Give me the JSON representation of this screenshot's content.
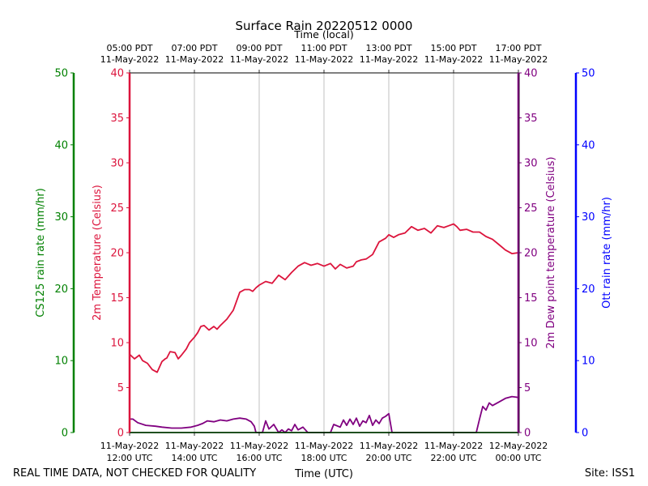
{
  "chart_data": {
    "type": "line",
    "title": "Surface Rain 20220512 0000",
    "top_axis_label": "Time (local)",
    "xlabel": "Time (UTC)",
    "footer_left": "REAL TIME DATA, NOT CHECKED FOR QUALITY",
    "footer_right": "Site: ISS1",
    "x_range_hours_utc": [
      12,
      24
    ],
    "x_ticks_utc": [
      {
        "hour": 12,
        "line1": "11-May-2022",
        "line2": "12:00 UTC"
      },
      {
        "hour": 14,
        "line1": "11-May-2022",
        "line2": "14:00 UTC"
      },
      {
        "hour": 16,
        "line1": "11-May-2022",
        "line2": "16:00 UTC"
      },
      {
        "hour": 18,
        "line1": "11-May-2022",
        "line2": "18:00 UTC"
      },
      {
        "hour": 20,
        "line1": "11-May-2022",
        "line2": "20:00 UTC"
      },
      {
        "hour": 22,
        "line1": "11-May-2022",
        "line2": "22:00 UTC"
      },
      {
        "hour": 24,
        "line1": "12-May-2022",
        "line2": "00:00 UTC"
      }
    ],
    "x_ticks_local": [
      {
        "hour": 12,
        "line1": "05:00 PDT",
        "line2": "11-May-2022"
      },
      {
        "hour": 14,
        "line1": "07:00 PDT",
        "line2": "11-May-2022"
      },
      {
        "hour": 16,
        "line1": "09:00 PDT",
        "line2": "11-May-2022"
      },
      {
        "hour": 18,
        "line1": "11:00 PDT",
        "line2": "11-May-2022"
      },
      {
        "hour": 20,
        "line1": "13:00 PDT",
        "line2": "11-May-2022"
      },
      {
        "hour": 22,
        "line1": "15:00 PDT",
        "line2": "11-May-2022"
      },
      {
        "hour": 24,
        "line1": "17:00 PDT",
        "line2": "11-May-2022"
      }
    ],
    "axes": {
      "cs125": {
        "label": "CS125 rain rate (mm/hr)",
        "range": [
          0,
          50
        ],
        "ticks": [
          0,
          10,
          20,
          30,
          40,
          50
        ],
        "color": "#008000"
      },
      "temperature": {
        "label": "2m Temperature (Celsius)",
        "range": [
          0,
          40
        ],
        "ticks": [
          0,
          5,
          10,
          15,
          20,
          25,
          30,
          35,
          40
        ],
        "color": "#dc143c"
      },
      "dewpoint": {
        "label": "2m Dew point temperature (Celsius)",
        "range": [
          0,
          40
        ],
        "ticks": [
          0,
          5,
          10,
          15,
          20,
          25,
          30,
          35,
          40
        ],
        "color": "#800080"
      },
      "ott": {
        "label": "Ott rain rate (mm/hr)",
        "range": [
          0,
          50
        ],
        "ticks": [
          0,
          10,
          20,
          30,
          40,
          50
        ],
        "color": "#0000ff"
      }
    },
    "series": [
      {
        "name": "2m Temperature",
        "axis": "temperature",
        "color": "#dc143c",
        "x": [
          12.0,
          12.15,
          12.3,
          12.4,
          12.55,
          12.7,
          12.85,
          13.0,
          13.1,
          13.15,
          13.25,
          13.4,
          13.5,
          13.6,
          13.75,
          13.85,
          14.0,
          14.1,
          14.2,
          14.3,
          14.45,
          14.6,
          14.7,
          14.8,
          15.0,
          15.2,
          15.4,
          15.55,
          15.7,
          15.8,
          15.9,
          16.0,
          16.2,
          16.4,
          16.6,
          16.8,
          17.0,
          17.2,
          17.4,
          17.6,
          17.8,
          18.0,
          18.2,
          18.35,
          18.5,
          18.7,
          18.9,
          19.0,
          19.15,
          19.3,
          19.5,
          19.7,
          19.9,
          20.0,
          20.15,
          20.3,
          20.5,
          20.7,
          20.9,
          21.1,
          21.3,
          21.5,
          21.7,
          21.85,
          22.0,
          22.1,
          22.2,
          22.4,
          22.6,
          22.8,
          23.0,
          23.2,
          23.4,
          23.6,
          23.8,
          24.0
        ],
        "y": [
          8.7,
          8.2,
          8.6,
          8.0,
          7.7,
          7.0,
          6.7,
          7.9,
          8.2,
          8.3,
          9.0,
          8.9,
          8.2,
          8.6,
          9.3,
          10.0,
          10.6,
          11.1,
          11.8,
          11.9,
          11.4,
          11.8,
          11.5,
          11.9,
          12.6,
          13.6,
          15.6,
          15.9,
          15.9,
          15.7,
          16.1,
          16.4,
          16.8,
          16.6,
          17.5,
          17.0,
          17.8,
          18.5,
          18.9,
          18.6,
          18.8,
          18.5,
          18.8,
          18.2,
          18.7,
          18.3,
          18.5,
          19.0,
          19.2,
          19.3,
          19.8,
          21.2,
          21.6,
          22.0,
          21.7,
          22.0,
          22.2,
          22.9,
          22.5,
          22.7,
          22.2,
          23.0,
          22.8,
          23.0,
          23.2,
          22.9,
          22.5,
          22.6,
          22.3,
          22.3,
          21.8,
          21.5,
          20.9,
          20.3,
          19.9,
          20.0
        ]
      },
      {
        "name": "2m Dew point temperature",
        "axis": "dewpoint",
        "color": "#800080",
        "x": [
          12.0,
          12.1,
          12.25,
          12.5,
          12.8,
          13.0,
          13.3,
          13.6,
          13.9,
          14.1,
          14.25,
          14.4,
          14.6,
          14.8,
          15.0,
          15.2,
          15.4,
          15.6,
          15.75,
          15.85,
          15.9,
          16.0,
          16.1,
          16.2,
          16.3,
          16.45,
          16.6,
          16.7,
          16.8,
          16.9,
          17.0,
          17.1,
          17.2,
          17.35,
          17.5,
          18.0,
          18.2,
          18.3,
          18.5,
          18.6,
          18.7,
          18.8,
          18.9,
          19.0,
          19.1,
          19.2,
          19.3,
          19.4,
          19.5,
          19.6,
          19.7,
          19.8,
          19.9,
          20.0,
          20.1,
          20.2,
          20.5,
          21.0,
          21.5,
          22.0,
          22.5,
          22.7,
          22.8,
          22.9,
          23.0,
          23.1,
          23.2,
          23.4,
          23.6,
          23.8,
          24.0
        ],
        "y": [
          1.5,
          1.5,
          1.1,
          0.8,
          0.7,
          0.6,
          0.5,
          0.5,
          0.6,
          0.8,
          1.0,
          1.3,
          1.2,
          1.4,
          1.3,
          1.5,
          1.6,
          1.5,
          1.2,
          0.7,
          0.0,
          0.0,
          0.0,
          1.3,
          0.4,
          0.9,
          0.0,
          0.3,
          0.0,
          0.4,
          0.2,
          0.9,
          0.3,
          0.6,
          0.0,
          0.0,
          0.0,
          0.9,
          0.6,
          1.4,
          0.8,
          1.5,
          0.9,
          1.6,
          0.7,
          1.3,
          1.1,
          1.9,
          0.8,
          1.4,
          1.0,
          1.6,
          1.8,
          2.1,
          0.0,
          0.0,
          0.0,
          0.0,
          0.0,
          0.0,
          0.0,
          0.0,
          1.5,
          2.9,
          2.5,
          3.3,
          3.0,
          3.4,
          3.8,
          4.0,
          3.9
        ]
      },
      {
        "name": "CS125 rain rate",
        "axis": "cs125",
        "color": "#008000",
        "x": [
          12.0,
          24.0
        ],
        "y": [
          0,
          0
        ]
      }
    ]
  }
}
